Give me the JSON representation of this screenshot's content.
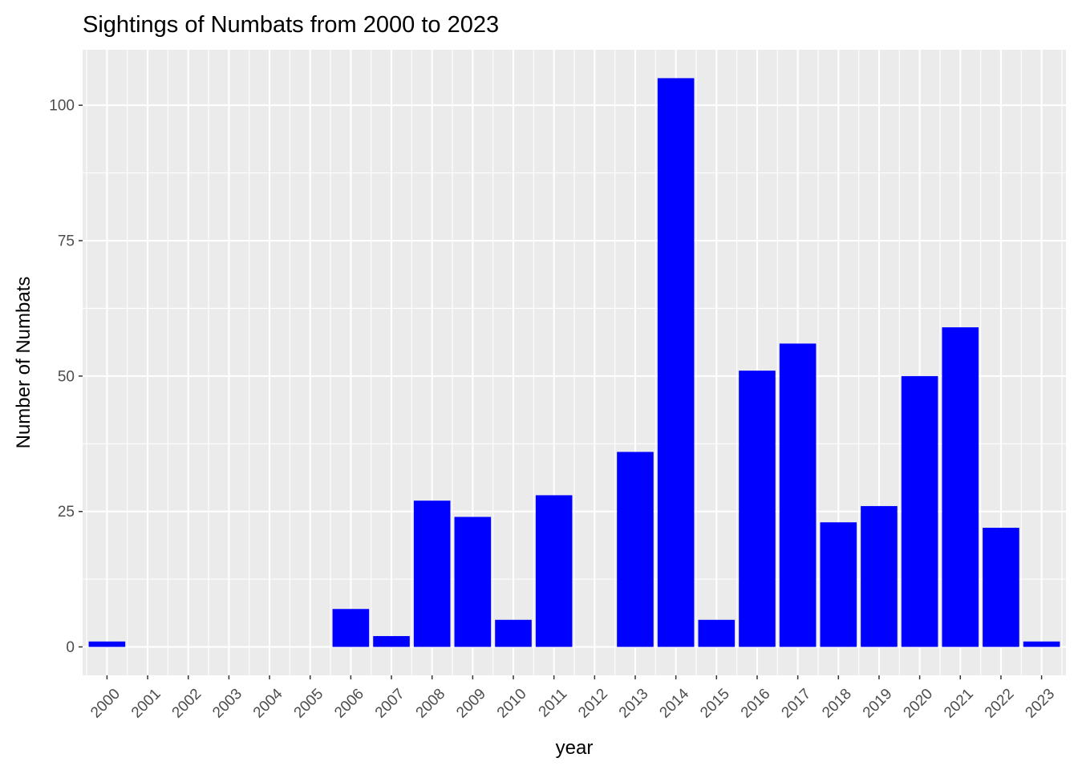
{
  "chart_data": {
    "type": "bar",
    "title": "Sightings of Numbats from 2000 to 2023",
    "xlabel": "year",
    "ylabel": "Number of Numbats",
    "categories": [
      "2000",
      "2001",
      "2002",
      "2003",
      "2004",
      "2005",
      "2006",
      "2007",
      "2008",
      "2009",
      "2010",
      "2011",
      "2012",
      "2013",
      "2014",
      "2015",
      "2016",
      "2017",
      "2018",
      "2019",
      "2020",
      "2021",
      "2022",
      "2023"
    ],
    "values": [
      1,
      0,
      0,
      0,
      0,
      0,
      7,
      2,
      27,
      24,
      5,
      28,
      0,
      36,
      105,
      5,
      51,
      56,
      23,
      26,
      50,
      59,
      22,
      1
    ],
    "yticks": [
      0,
      25,
      50,
      75,
      100
    ],
    "ylim": [
      -5.25,
      110.25
    ],
    "grid": true,
    "x_tick_rotation": "45 degrees",
    "colors": {
      "bar": "#0000FF",
      "panel_background": "#EBEBEB",
      "grid_major": "#FFFFFF",
      "text": "#000000",
      "tick_text": "#4D4D4D"
    }
  }
}
